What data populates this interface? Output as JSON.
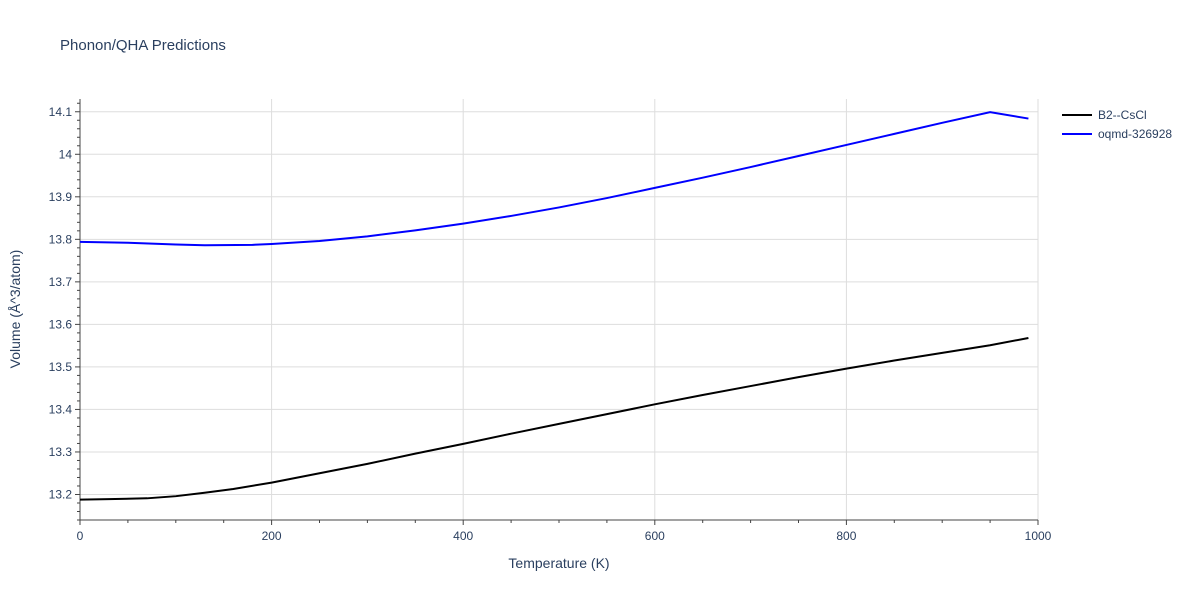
{
  "chart_data": {
    "type": "line",
    "title": "Phonon/QHA Predictions",
    "xlabel": "Temperature (K)",
    "ylabel": "Volume (Å^3/atom)",
    "xlim": [
      0,
      1000
    ],
    "ylim": [
      13.14,
      14.13
    ],
    "xticks": [
      0,
      200,
      400,
      600,
      800,
      1000
    ],
    "yticks": [
      13.2,
      13.3,
      13.4,
      13.5,
      13.6,
      13.7,
      13.8,
      13.9,
      14,
      14.1
    ],
    "grid": true,
    "legend_position": "top-right",
    "series": [
      {
        "name": "B2--CsCl",
        "color": "#000000",
        "x": [
          0,
          30,
          70,
          100,
          130,
          160,
          200,
          250,
          300,
          350,
          400,
          450,
          500,
          550,
          600,
          650,
          700,
          750,
          800,
          850,
          900,
          950,
          990
        ],
        "y": [
          13.188,
          13.189,
          13.191,
          13.196,
          13.204,
          13.213,
          13.228,
          13.25,
          13.272,
          13.296,
          13.319,
          13.343,
          13.366,
          13.389,
          13.412,
          13.434,
          13.455,
          13.476,
          13.496,
          13.515,
          13.533,
          13.551,
          13.568
        ]
      },
      {
        "name": "oqmd-326928",
        "color": "#0000ff",
        "x": [
          0,
          50,
          100,
          130,
          180,
          200,
          250,
          300,
          350,
          400,
          450,
          500,
          550,
          600,
          650,
          700,
          750,
          800,
          850,
          900,
          950,
          990
        ],
        "y": [
          13.794,
          13.792,
          13.788,
          13.786,
          13.787,
          13.789,
          13.796,
          13.807,
          13.821,
          13.837,
          13.855,
          13.875,
          13.897,
          13.921,
          13.945,
          13.97,
          13.996,
          14.022,
          14.048,
          14.074,
          14.099,
          14.084
        ]
      }
    ]
  }
}
